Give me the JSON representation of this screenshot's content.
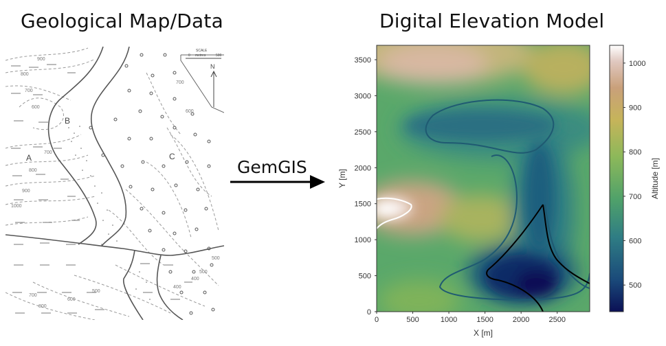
{
  "left_title": "Geological Map/Data",
  "right_title": "Digital Elevation Model",
  "arrow_label": "GemGIS",
  "geo_map": {
    "unit_labels": [
      "A",
      "B",
      "C"
    ],
    "contour_labels": [
      "900",
      "800",
      "700",
      "600",
      "700",
      "800",
      "900",
      "1000",
      "700",
      "600",
      "500",
      "500",
      "400",
      "400",
      "500",
      "600",
      "700",
      "800"
    ],
    "scale_label": "SCALE",
    "scale_units": "metres",
    "scale_start": "0",
    "scale_end": "500",
    "north_label": "N"
  },
  "chart_data": {
    "type": "heatmap",
    "title": "Digital Elevation Model",
    "xlabel": "X [m]",
    "ylabel": "Y [m]",
    "xlim": [
      0,
      2950
    ],
    "ylim": [
      0,
      3700
    ],
    "x_ticks": [
      0,
      500,
      1000,
      1500,
      2000,
      2500
    ],
    "y_ticks": [
      0,
      500,
      1000,
      1500,
      2000,
      2500,
      3000,
      3500
    ],
    "colorbar": {
      "label": "Altitude [m]",
      "range": [
        440,
        1040
      ],
      "ticks": [
        500,
        600,
        700,
        800,
        900,
        1000
      ],
      "colormap": "gist_earth-like",
      "colors": [
        "#0b1055",
        "#1a4a7a",
        "#2f7d84",
        "#4fa16a",
        "#8cb85a",
        "#c6b45a",
        "#c9a07a",
        "#e0c8c0",
        "#ffffff"
      ]
    },
    "contours": [
      {
        "level": 500,
        "color": "#000000"
      },
      {
        "level": 600,
        "color": "#1f5a72"
      },
      {
        "level": 1000,
        "color": "#ffffff"
      }
    ],
    "grid": false
  }
}
